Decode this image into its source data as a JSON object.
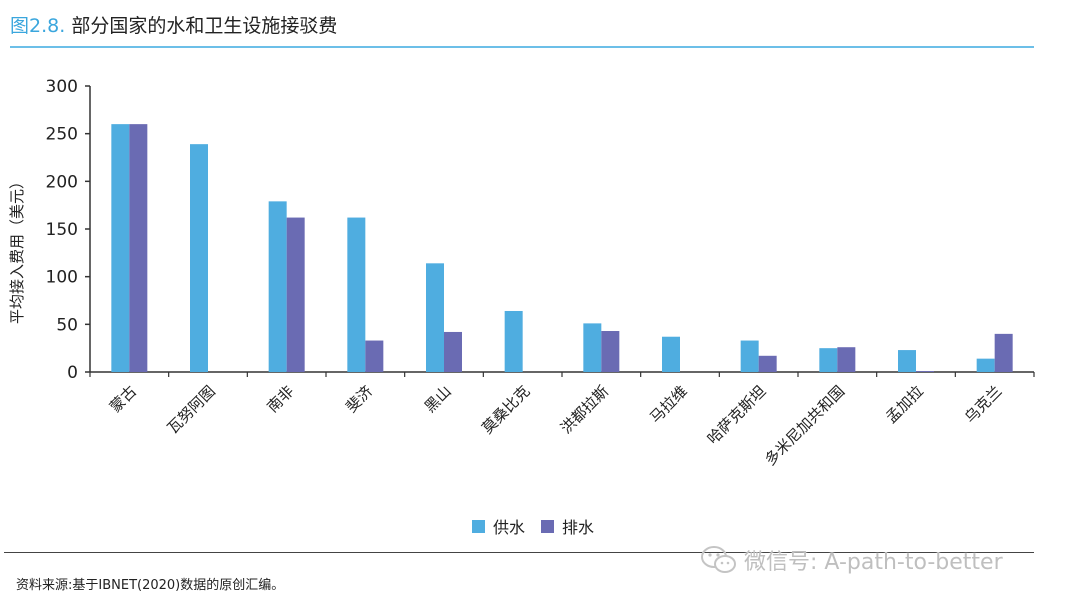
{
  "figure": {
    "label": "图2.8.",
    "title": "部分国家的水和卫生设施接驳费",
    "source": "资料来源:基于IBNET(2020)数据的原创汇编。",
    "watermark_text": "微信号: A-path-to-better",
    "watermark_icon": "wechat-icon"
  },
  "colors": {
    "supply": "#4fade0",
    "drainage": "#6a6bb3",
    "accent": "#3aa6dd"
  },
  "chart_data": {
    "type": "bar",
    "title": "部分国家的水和卫生设施接驳费",
    "xlabel": "",
    "ylabel": "平均接入费用（美元）",
    "ylim": [
      0,
      300
    ],
    "yticks": [
      0,
      50,
      100,
      150,
      200,
      250,
      300
    ],
    "grid": false,
    "legend": "bottom-center",
    "categories": [
      "蒙古",
      "瓦努阿图",
      "南非",
      "斐济",
      "黑山",
      "莫桑比克",
      "洪都拉斯",
      "马拉维",
      "哈萨克斯坦",
      "多米尼加共和国",
      "孟加拉",
      "乌克兰"
    ],
    "series": [
      {
        "name": "供水",
        "values": [
          260,
          239,
          179,
          162,
          114,
          64,
          51,
          37,
          33,
          25,
          23,
          14
        ]
      },
      {
        "name": "排水",
        "values": [
          260,
          0,
          162,
          33,
          42,
          0,
          43,
          0,
          17,
          26,
          1,
          40
        ]
      }
    ]
  }
}
